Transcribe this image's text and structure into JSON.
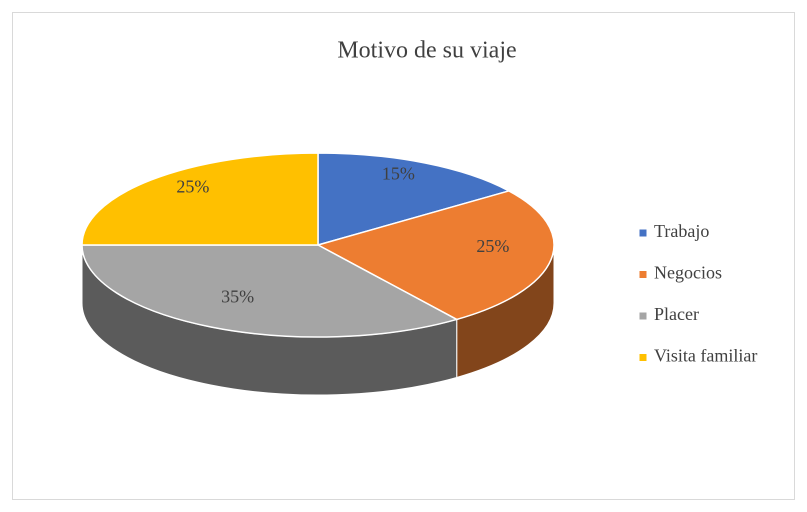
{
  "chart_data": {
    "type": "pie",
    "title": "Motivo de su viaje",
    "categories": [
      "Trabajo",
      "Negocios",
      "Placer",
      "Visita familiar"
    ],
    "values": [
      15,
      25,
      35,
      25
    ],
    "value_labels": [
      "15%",
      "25%",
      "35%",
      "25%"
    ],
    "colors": [
      "#4472c4",
      "#ed7d31",
      "#a5a5a5",
      "#ffc000"
    ],
    "legend": "right"
  }
}
